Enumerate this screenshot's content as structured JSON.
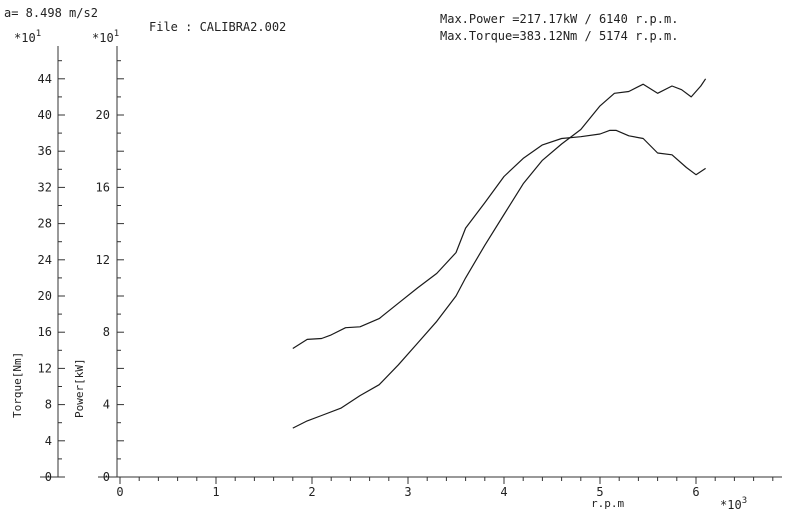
{
  "header": {
    "accel": "a= 8.498 m/s2",
    "file": "File : CALIBRA2.002",
    "max_power": "Max.Power =217.17kW /  6140 r.p.m.",
    "max_torque": "Max.Torque=383.12Nm /  5174 r.p.m."
  },
  "chart_data": {
    "type": "line",
    "xlabel": "r.p.m",
    "x_multiplier": "*10",
    "x_multiplier_exp": "3",
    "xlim": [
      0,
      6.8
    ],
    "x_ticks": [
      "0",
      "1",
      "2",
      "3",
      "4",
      "5",
      "6"
    ],
    "torque_axis": {
      "label": "Torque[Nm]",
      "multiplier": "*10",
      "multiplier_exp": "1",
      "range": [
        0,
        46
      ],
      "ticks": [
        "0",
        "4",
        "8",
        "12",
        "16",
        "20",
        "24",
        "28",
        "32",
        "36",
        "40",
        "44"
      ]
    },
    "power_axis": {
      "label": "Power[kW]",
      "multiplier": "*10",
      "multiplier_exp": "1",
      "range": [
        0,
        23
      ],
      "ticks": [
        "0",
        "4",
        "8",
        "12",
        "16",
        "20"
      ]
    },
    "series": [
      {
        "axis": "torque",
        "points": [
          [
            1.8,
            14.2
          ],
          [
            1.95,
            15.2
          ],
          [
            2.1,
            15.3
          ],
          [
            2.2,
            15.7
          ],
          [
            2.35,
            16.5
          ],
          [
            2.5,
            16.6
          ],
          [
            2.7,
            17.5
          ],
          [
            2.9,
            19.2
          ],
          [
            3.1,
            20.9
          ],
          [
            3.3,
            22.5
          ],
          [
            3.5,
            24.8
          ],
          [
            3.6,
            27.5
          ],
          [
            3.8,
            30.3
          ],
          [
            4.0,
            33.2
          ],
          [
            4.2,
            35.2
          ],
          [
            4.4,
            36.7
          ],
          [
            4.6,
            37.4
          ],
          [
            4.8,
            37.6
          ],
          [
            5.0,
            37.9
          ],
          [
            5.1,
            38.3
          ],
          [
            5.17,
            38.3
          ],
          [
            5.3,
            37.7
          ],
          [
            5.45,
            37.4
          ],
          [
            5.6,
            35.8
          ],
          [
            5.75,
            35.6
          ],
          [
            5.9,
            34.2
          ],
          [
            6.0,
            33.4
          ],
          [
            6.1,
            34.1
          ]
        ]
      },
      {
        "axis": "power",
        "points": [
          [
            1.8,
            2.7
          ],
          [
            1.95,
            3.1
          ],
          [
            2.1,
            3.4
          ],
          [
            2.3,
            3.8
          ],
          [
            2.5,
            4.5
          ],
          [
            2.7,
            5.1
          ],
          [
            2.9,
            6.2
          ],
          [
            3.1,
            7.4
          ],
          [
            3.3,
            8.6
          ],
          [
            3.5,
            10.0
          ],
          [
            3.6,
            11.0
          ],
          [
            3.8,
            12.8
          ],
          [
            4.0,
            14.5
          ],
          [
            4.2,
            16.2
          ],
          [
            4.4,
            17.5
          ],
          [
            4.6,
            18.4
          ],
          [
            4.8,
            19.2
          ],
          [
            5.0,
            20.5
          ],
          [
            5.15,
            21.2
          ],
          [
            5.3,
            21.3
          ],
          [
            5.45,
            21.7
          ],
          [
            5.6,
            21.2
          ],
          [
            5.75,
            21.6
          ],
          [
            5.85,
            21.4
          ],
          [
            5.95,
            21.0
          ],
          [
            6.05,
            21.6
          ],
          [
            6.1,
            22.0
          ]
        ]
      }
    ]
  }
}
